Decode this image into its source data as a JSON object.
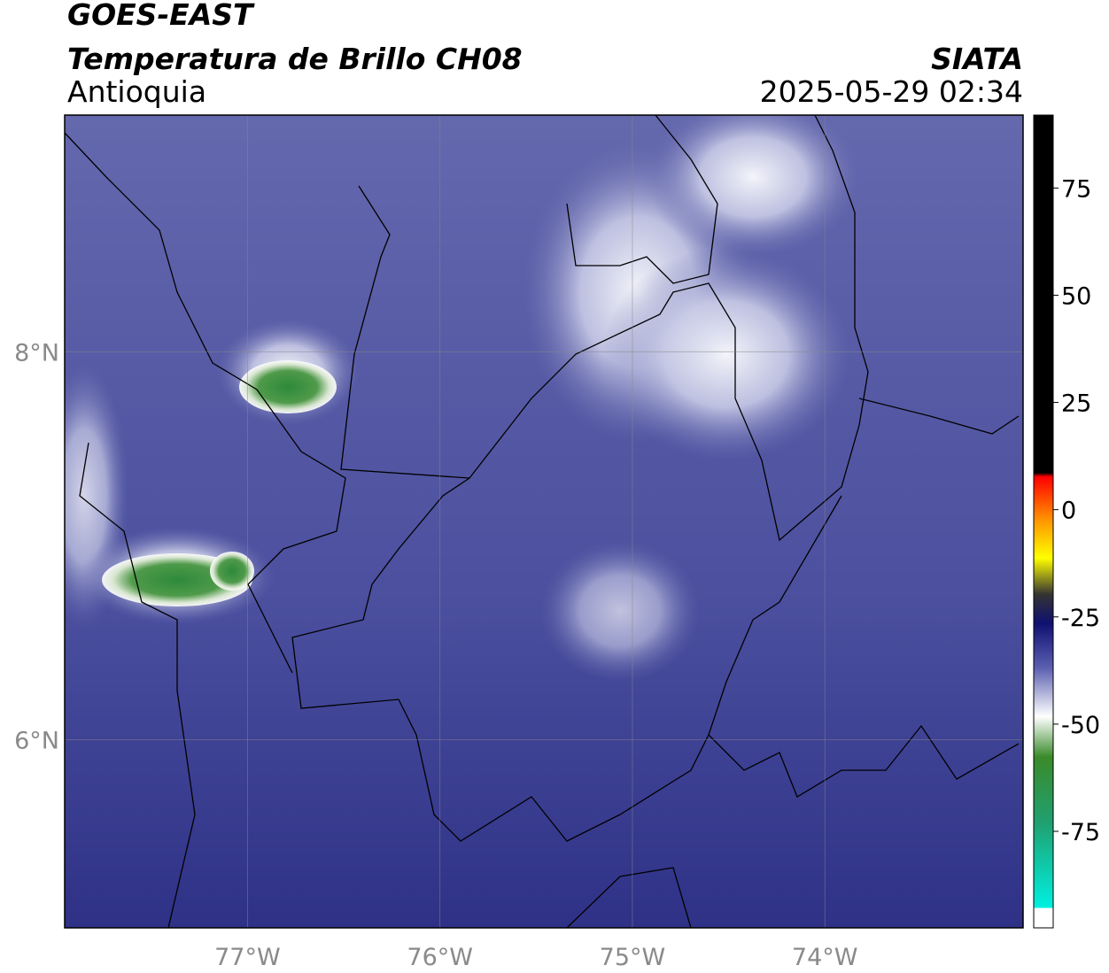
{
  "header": {
    "satellite": "GOES-EAST",
    "product": "Temperatura de Brillo CH08",
    "region": "Antioquia",
    "agency": "SIATA",
    "datetime": "2025-05-29 02:34"
  },
  "map": {
    "xlim": [
      -77.95,
      -72.97
    ],
    "ylim": [
      5.03,
      9.22
    ],
    "xticks": [
      {
        "value": -77,
        "label": "77°W"
      },
      {
        "value": -76,
        "label": "76°W"
      },
      {
        "value": -75,
        "label": "75°W"
      },
      {
        "value": -74,
        "label": "74°W"
      }
    ],
    "yticks": [
      {
        "value": 8,
        "label": "8°N"
      },
      {
        "value": 6,
        "label": "6°N"
      }
    ],
    "grid": true
  },
  "colorbar": {
    "lim": [
      -97.5,
      92
    ],
    "ticks": [
      75,
      50,
      25,
      0,
      -25,
      -50,
      -75
    ]
  }
}
